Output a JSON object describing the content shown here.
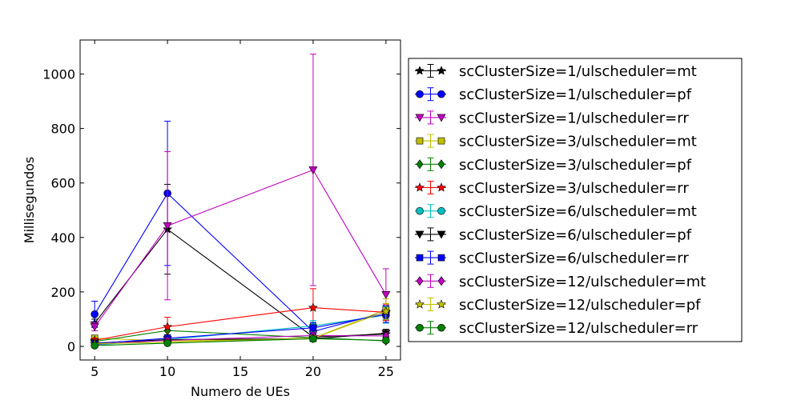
{
  "chart_data": {
    "type": "line",
    "title": "",
    "xlabel": "Numero de UEs",
    "ylabel": "Millisegundos",
    "x": [
      5,
      10,
      20,
      25
    ],
    "xlim": [
      4,
      26
    ],
    "ylim": [
      -50,
      1125
    ],
    "xticks": [
      5,
      10,
      15,
      20,
      25
    ],
    "yticks": [
      0,
      200,
      400,
      600,
      800,
      1000
    ],
    "grid": false,
    "legend_position": "right",
    "series": [
      {
        "name": "scClusterSize=1/ulscheduler=mt",
        "color": "#000000",
        "marker": "star",
        "values": [
          85,
          430,
          35,
          45
        ],
        "errors": [
          15,
          165,
          10,
          12
        ]
      },
      {
        "name": "scClusterSize=1/ulscheduler=pf",
        "color": "#0000ff",
        "marker": "circle",
        "values": [
          118,
          562,
          55,
          125
        ],
        "errors": [
          48,
          265,
          20,
          25
        ]
      },
      {
        "name": "scClusterSize=1/ulscheduler=rr",
        "color": "#bf00bf",
        "marker": "triangle-down",
        "values": [
          72,
          443,
          648,
          190
        ],
        "errors": [
          15,
          272,
          425,
          95
        ]
      },
      {
        "name": "scClusterSize=3/ulscheduler=mt",
        "color": "#bfbf00",
        "marker": "square",
        "values": [
          30,
          20,
          30,
          135
        ],
        "errors": [
          8,
          10,
          12,
          40
        ]
      },
      {
        "name": "scClusterSize=3/ulscheduler=pf",
        "color": "#008000",
        "marker": "diamond",
        "values": [
          18,
          58,
          32,
          20
        ],
        "errors": [
          5,
          15,
          10,
          6
        ]
      },
      {
        "name": "scClusterSize=3/ulscheduler=rr",
        "color": "#ff0000",
        "marker": "star",
        "values": [
          22,
          72,
          142,
          125
        ],
        "errors": [
          8,
          35,
          70,
          30
        ]
      },
      {
        "name": "scClusterSize=6/ulscheduler=mt",
        "color": "#00bfbf",
        "marker": "circle",
        "values": [
          5,
          25,
          75,
          115
        ],
        "errors": [
          3,
          10,
          20,
          30
        ]
      },
      {
        "name": "scClusterSize=6/ulscheduler=pf",
        "color": "#000000",
        "marker": "triangle-down",
        "values": [
          12,
          25,
          28,
          48
        ],
        "errors": [
          5,
          10,
          10,
          15
        ]
      },
      {
        "name": "scClusterSize=6/ulscheduler=rr",
        "color": "#0000ff",
        "marker": "square",
        "values": [
          10,
          30,
          68,
          118
        ],
        "errors": [
          4,
          12,
          20,
          30
        ]
      },
      {
        "name": "scClusterSize=12/ulscheduler=mt",
        "color": "#bf00bf",
        "marker": "diamond",
        "values": [
          8,
          22,
          40,
          38
        ],
        "errors": [
          3,
          8,
          12,
          12
        ]
      },
      {
        "name": "scClusterSize=12/ulscheduler=pf",
        "color": "#bfbf00",
        "marker": "star",
        "values": [
          10,
          15,
          30,
          128
        ],
        "errors": [
          3,
          6,
          10,
          30
        ]
      },
      {
        "name": "scClusterSize=12/ulscheduler=rr",
        "color": "#008000",
        "marker": "circle",
        "values": [
          3,
          12,
          28,
          22
        ],
        "errors": [
          2,
          5,
          10,
          8
        ]
      }
    ]
  }
}
